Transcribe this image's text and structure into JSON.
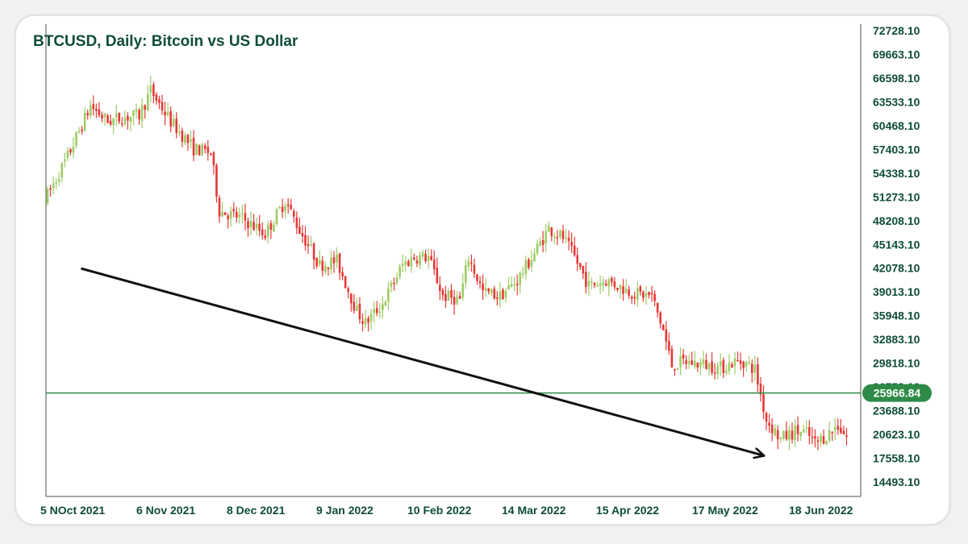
{
  "chart_data": {
    "type": "candlestick",
    "title": "BTCUSD, Daily: Bitcoin vs US Dollar",
    "y_ticks": [
      "72728.10",
      "69663.10",
      "66598.10",
      "63533.10",
      "60468.10",
      "57403.10",
      "54338.10",
      "51273.10",
      "48208.10",
      "45143.10",
      "42078.10",
      "39013.10",
      "35948.10",
      "32883.10",
      "29818.10",
      "26753.10",
      "23688.10",
      "20623.10",
      "17558.10",
      "14493.10"
    ],
    "x_ticks": [
      "5 NOct 2021",
      "6 Nov 2021",
      "8 Dec 2021",
      "9 Jan 2022",
      "10 Feb 2022",
      "14 Mar 2022",
      "15 Apr 2022",
      "17 May 2022",
      "18 Jun 2022"
    ],
    "ylim": [
      14493.1,
      72728.1
    ],
    "price_line": {
      "value": 25966.84,
      "label": "25966.84"
    },
    "annotation": {
      "type": "trend-arrow",
      "from": {
        "x": "17 Oct 2021",
        "y": 42000
      },
      "to": {
        "x": "12 Jun 2022",
        "y": 17900
      }
    },
    "trend_anchors": [
      [
        "5 Oct 2021",
        51500
      ],
      [
        "12 Oct 2021",
        56500
      ],
      [
        "20 Oct 2021",
        63000
      ],
      [
        "26 Oct 2021",
        61000
      ],
      [
        "31 Oct 2021",
        61500
      ],
      [
        "6 Nov 2021",
        61800
      ],
      [
        "10 Nov 2021",
        65000
      ],
      [
        "17 Nov 2021",
        61000
      ],
      [
        "25 Nov 2021",
        57500
      ],
      [
        "1 Dec 2021",
        57000
      ],
      [
        "4 Dec 2021",
        49500
      ],
      [
        "12 Dec 2021",
        48500
      ],
      [
        "16 Dec 2021",
        47500
      ],
      [
        "20 Dec 2021",
        46500
      ],
      [
        "27 Dec 2021",
        50800
      ],
      [
        "1 Jan 2022",
        47000
      ],
      [
        "8 Jan 2022",
        42500
      ],
      [
        "14 Jan 2022",
        43000
      ],
      [
        "21 Jan 2022",
        36500
      ],
      [
        "24 Jan 2022",
        35000
      ],
      [
        "30 Jan 2022",
        37500
      ],
      [
        "6 Feb 2022",
        42500
      ],
      [
        "10 Feb 2022",
        43500
      ],
      [
        "15 Feb 2022",
        43500
      ],
      [
        "20 Feb 2022",
        38500
      ],
      [
        "26 Feb 2022",
        38000
      ],
      [
        "1 Mar 2022",
        43500
      ],
      [
        "6 Mar 2022",
        39000
      ],
      [
        "12 Mar 2022",
        38500
      ],
      [
        "18 Mar 2022",
        40500
      ],
      [
        "24 Mar 2022",
        44000
      ],
      [
        "29 Mar 2022",
        47200
      ],
      [
        "3 Apr 2022",
        46000
      ],
      [
        "7 Apr 2022",
        43500
      ],
      [
        "12 Apr 2022",
        39800
      ],
      [
        "18 Apr 2022",
        40500
      ],
      [
        "21 Apr 2022",
        40000
      ],
      [
        "28 Apr 2022",
        38800
      ],
      [
        "4 May 2022",
        38500
      ],
      [
        "8 May 2022",
        34000
      ],
      [
        "11 May 2022",
        29500
      ],
      [
        "15 May 2022",
        30000
      ],
      [
        "22 May 2022",
        29700
      ],
      [
        "28 May 2022",
        29200
      ],
      [
        "2 Jun 2022",
        30000
      ],
      [
        "5 Jun 2022",
        30000
      ],
      [
        "9 Jun 2022",
        29000
      ],
      [
        "13 Jun 2022",
        22500
      ],
      [
        "18 Jun 2022",
        20000
      ],
      [
        "23 Jun 2022",
        21000
      ],
      [
        "27 Jun 2022",
        20800
      ],
      [
        "30 Jun 2022",
        19500
      ],
      [
        "4 Jul 2022",
        20500
      ],
      [
        "8 Jul 2022",
        21800
      ],
      [
        "11 Jul 2022",
        20300
      ]
    ],
    "colors": {
      "up": "#9ccc65",
      "down": "#e53935",
      "price_line": "#2e8b47",
      "badge": "#2e8b47",
      "text": "#0e4d35",
      "axis": "#4d4d4d",
      "arrow": "#111111"
    },
    "grid": false
  }
}
